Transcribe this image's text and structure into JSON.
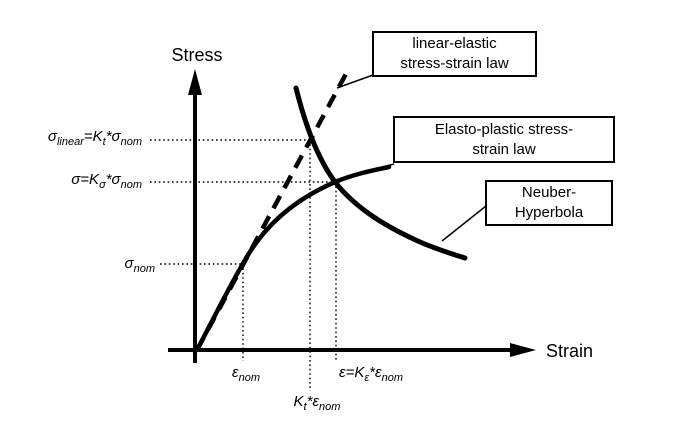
{
  "colors": {
    "ink": "#000000",
    "background": "#ffffff"
  },
  "axes": {
    "y_title": "Stress",
    "x_title": "Strain"
  },
  "callouts": {
    "linear_elastic": {
      "line1": "linear-elastic",
      "line2": "stress-strain law"
    },
    "elasto_plastic": {
      "line1": "Elasto-plastic stress-",
      "line2": "strain law"
    },
    "neuber": {
      "line1": "Neuber-",
      "line2": "Hyperbola"
    }
  },
  "formulas": {
    "sigma_linear": [
      {
        "t": "σ"
      },
      {
        "t": "linear",
        "sub": true
      },
      {
        "t": "=K"
      },
      {
        "t": "t",
        "sub": true
      },
      {
        "t": "*σ"
      },
      {
        "t": "nom",
        "sub": true
      }
    ],
    "sigma_notch": [
      {
        "t": "σ=K"
      },
      {
        "t": "σ",
        "sub": true
      },
      {
        "t": "*σ"
      },
      {
        "t": "nom",
        "sub": true
      }
    ],
    "sigma_nom": [
      {
        "t": "σ"
      },
      {
        "t": "nom",
        "sub": true
      }
    ],
    "eps_nom": [
      {
        "t": "ε"
      },
      {
        "t": "nom",
        "sub": true
      }
    ],
    "kt_eps_nom": [
      {
        "t": "K"
      },
      {
        "t": "t",
        "sub": true
      },
      {
        "t": "*ε"
      },
      {
        "t": "nom",
        "sub": true
      }
    ],
    "eps_keps_nom": [
      {
        "t": "ε=K"
      },
      {
        "t": "ε",
        "sub": true
      },
      {
        "t": "*ε"
      },
      {
        "t": "nom",
        "sub": true
      }
    ]
  },
  "curves": [
    {
      "name": "linear-elastic stress-strain law",
      "style": "dashed"
    },
    {
      "name": "elasto-plastic stress-strain law",
      "style": "solid"
    },
    {
      "name": "neuber-hyperbola",
      "style": "solid-thick"
    }
  ]
}
